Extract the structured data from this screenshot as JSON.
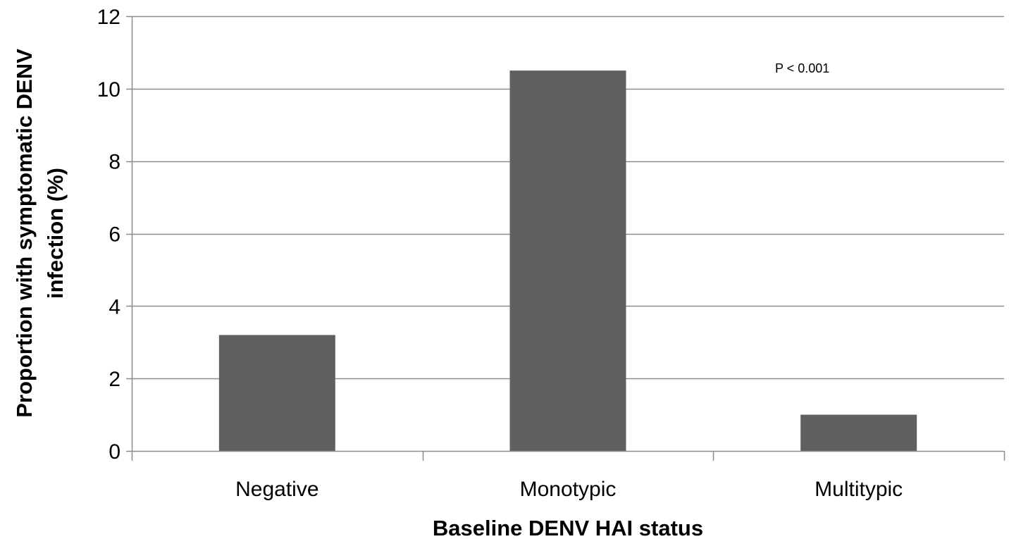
{
  "colors": {
    "bar": "#606060",
    "grid": "#8c8c8c",
    "axis": "#8c8c8c",
    "background": "#ffffff"
  },
  "chart_data": {
    "type": "bar",
    "categories": [
      "Negative",
      "Monotypic",
      "Multitypic"
    ],
    "values": [
      3.2,
      10.5,
      1.0
    ],
    "xlabel": "Baseline DENV HAI status",
    "ylabel_lines": [
      "Proportion with symptomatic DENV",
      "infection (%)"
    ],
    "ylim": [
      0,
      12
    ],
    "yticks": [
      0,
      2,
      4,
      6,
      8,
      10,
      12
    ],
    "grid": true,
    "legend": "none",
    "annotation": "P < 0.001"
  }
}
